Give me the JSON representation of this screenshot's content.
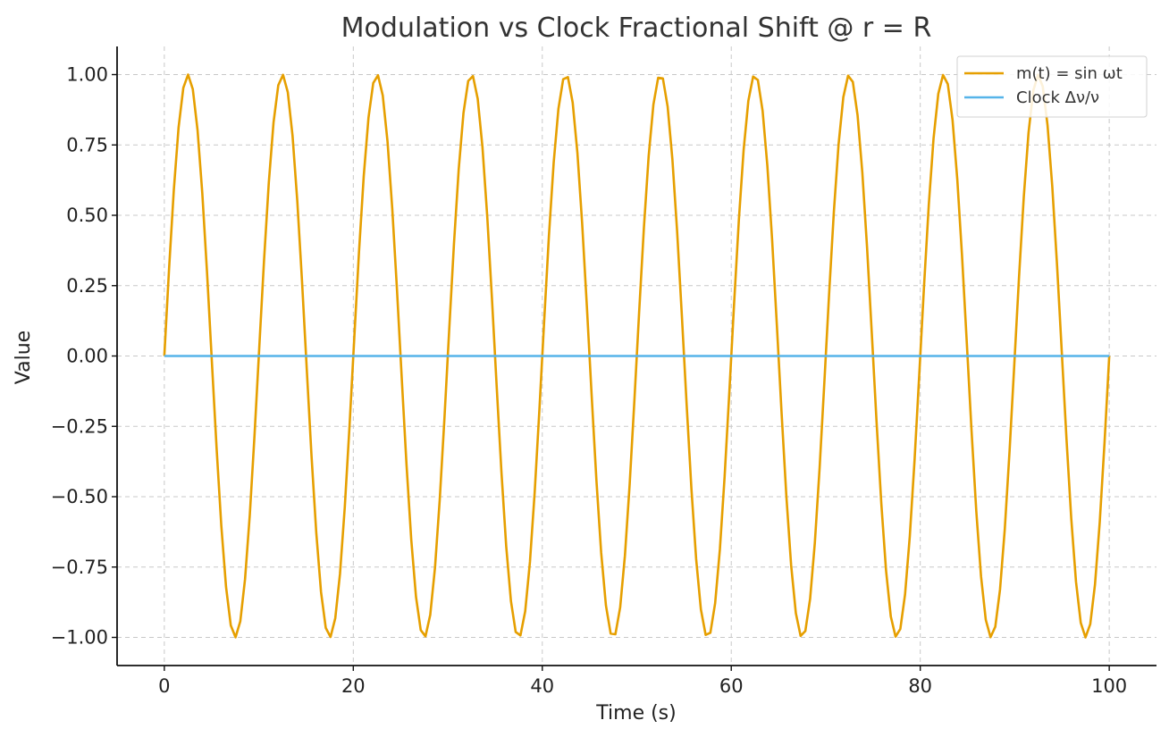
{
  "chart_data": {
    "type": "line",
    "title": "Modulation vs Clock Fractional Shift @ r = R",
    "xlabel": "Time (s)",
    "ylabel": "Value",
    "xlim": [
      -5,
      105
    ],
    "ylim": [
      -1.1,
      1.1
    ],
    "xticks": [
      0,
      20,
      40,
      60,
      80,
      100
    ],
    "xtick_labels": [
      "0",
      "20",
      "40",
      "60",
      "80",
      "100"
    ],
    "yticks": [
      -1.0,
      -0.75,
      -0.5,
      -0.25,
      0.0,
      0.25,
      0.5,
      0.75,
      1.0
    ],
    "ytick_labels": [
      "−1.00",
      "−0.75",
      "−0.50",
      "−0.25",
      "0.00",
      "0.25",
      "0.50",
      "0.75",
      "1.00"
    ],
    "grid": true,
    "legend_position": "top-right",
    "series": [
      {
        "name": "m(t) = sin ωt",
        "color": "#E69F00",
        "function": "sin",
        "amplitude": 1,
        "period": 10,
        "x_start": 0,
        "x_end": 100,
        "samples": 200
      },
      {
        "name": "Clock Δν/ν",
        "color": "#56B4E9",
        "x": [
          0,
          100
        ],
        "y": [
          0,
          0
        ]
      }
    ]
  }
}
